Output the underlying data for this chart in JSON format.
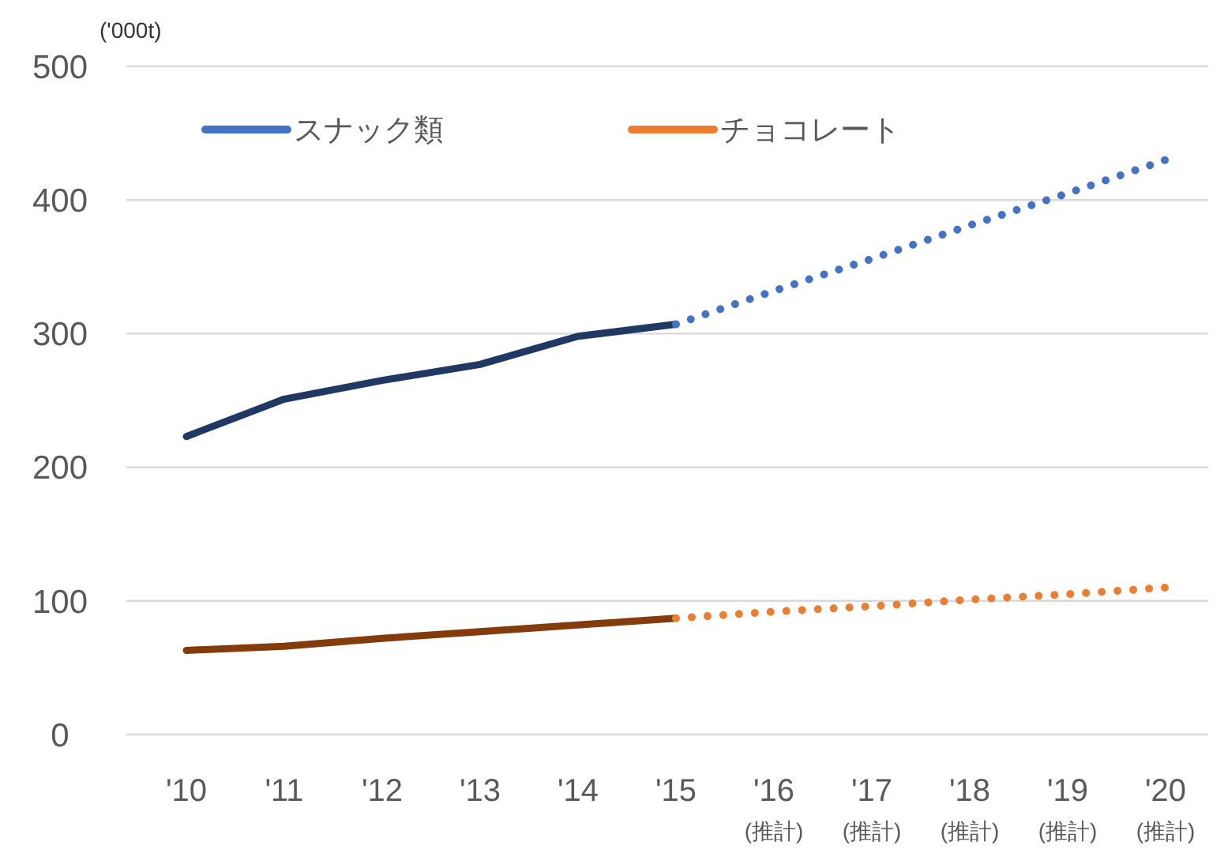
{
  "chart_data": {
    "type": "line",
    "categories": [
      "'10",
      "'11",
      "'12",
      "'13",
      "'14",
      "'15",
      "'16\n(推計)",
      "'17\n(推計)",
      "'18\n(推計)",
      "'19\n(推計)",
      "'20\n(推計)"
    ],
    "ylabel": "('000t)",
    "ylim": [
      0,
      500
    ],
    "yticks": [
      0,
      100,
      200,
      300,
      400,
      500
    ],
    "grid": "y",
    "legend": "top left",
    "series": [
      {
        "color": "#1f3864",
        "line_style": "solid",
        "values": [
          223,
          251,
          265,
          277,
          298,
          307,
          null,
          null,
          null,
          null,
          null
        ]
      },
      {
        "name": "スナック類",
        "color": "#4472c4",
        "line_style": "dotted",
        "values": [
          null,
          null,
          null,
          null,
          null,
          307,
          332,
          356,
          381,
          405,
          430
        ]
      },
      {
        "color": "#843c0c",
        "line_style": "solid",
        "values": [
          63,
          66,
          72,
          77,
          82,
          87,
          null,
          null,
          null,
          null,
          null
        ]
      },
      {
        "name": "チョコレート",
        "color": "#ed7d31",
        "line_style": "dotted",
        "values": [
          null,
          null,
          null,
          null,
          null,
          87,
          92,
          96,
          101,
          105,
          110
        ]
      }
    ]
  }
}
